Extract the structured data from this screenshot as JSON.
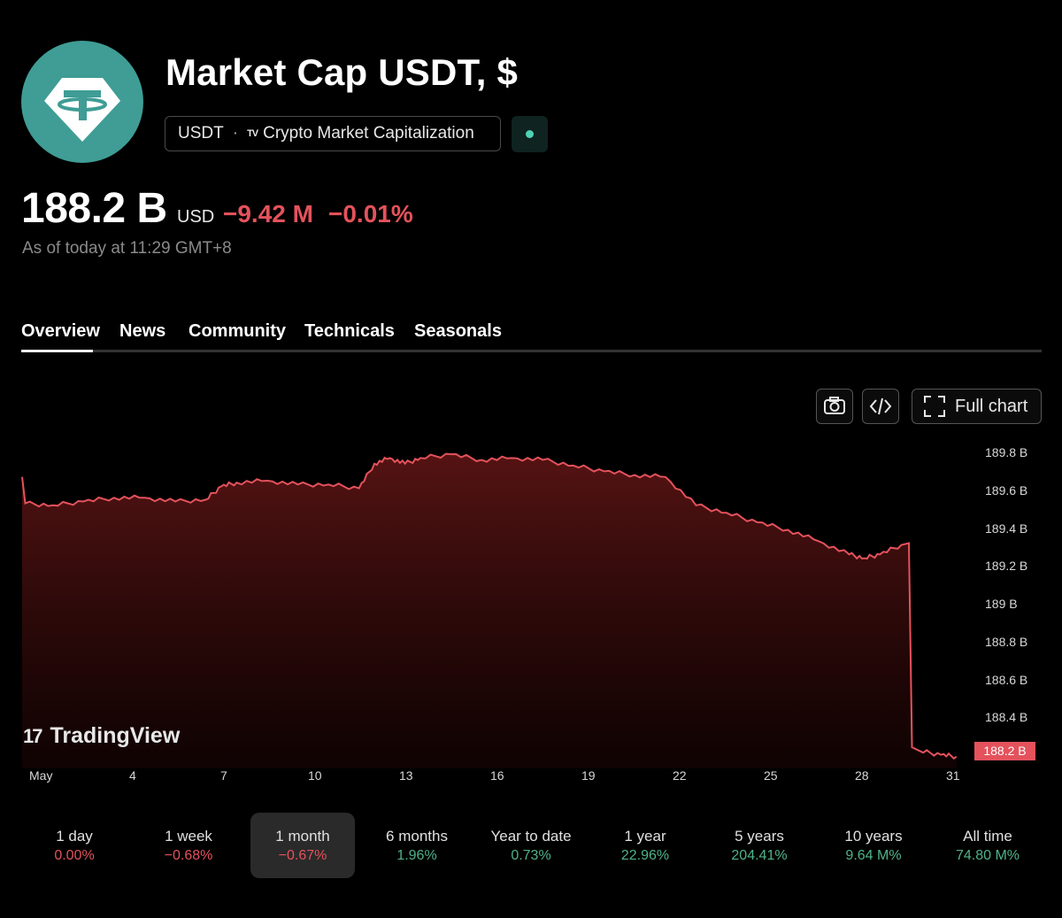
{
  "header": {
    "title": "Market Cap USDT, $",
    "symbol": "USDT",
    "source_logo": "TV",
    "source": "Crypto Market Capitalization"
  },
  "quote": {
    "value": "188.2 B",
    "currency": "USD",
    "change": "−9.42 M",
    "change_pct": "−0.01%",
    "as_of": "As of today at 11:29 GMT+8"
  },
  "tabs": [
    "Overview",
    "News",
    "Community",
    "Technicals",
    "Seasonals"
  ],
  "toolbar": {
    "full_chart": "Full chart"
  },
  "watermark": {
    "logo": "17",
    "text": "TradingView"
  },
  "colors": {
    "negative": "#e4525c",
    "positive": "#4fb38a",
    "accent": "#3f9d95"
  },
  "chart_data": {
    "type": "area",
    "y_ticks": [
      "189.8 B",
      "189.6 B",
      "189.4 B",
      "189.2 B",
      "189 B",
      "188.8 B",
      "188.6 B",
      "188.4 B",
      "188.2 B"
    ],
    "x_ticks": [
      "May",
      "4",
      "7",
      "10",
      "13",
      "16",
      "19",
      "22",
      "25",
      "28",
      "31"
    ],
    "x_day_range": [
      1,
      32
    ],
    "ylim_billion": [
      188.12,
      189.84
    ],
    "last_value_label": "188.2 B",
    "series": [
      {
        "x_day": [
          1.0,
          1.1,
          2.0,
          3.0,
          4.0,
          5.0,
          6.0,
          7.0,
          7.5,
          8.0,
          9.0,
          10.0,
          11.0,
          12.0,
          12.5,
          13.0,
          13.5,
          14.0,
          15.0,
          16.0,
          17.0,
          18.0,
          19.0,
          20.0,
          21.0,
          22.0,
          23.0,
          24.0,
          25.0,
          26.0,
          27.0,
          28.0,
          28.5,
          29.0,
          29.7,
          29.95,
          30.05,
          30.3,
          31.0,
          31.5
        ],
        "y_billion": [
          189.67,
          189.53,
          189.52,
          189.54,
          189.56,
          189.56,
          189.54,
          189.55,
          189.62,
          189.64,
          189.65,
          189.63,
          189.63,
          189.61,
          189.74,
          189.77,
          189.74,
          189.77,
          189.79,
          189.76,
          189.77,
          189.76,
          189.73,
          189.7,
          189.68,
          189.67,
          189.52,
          189.48,
          189.43,
          189.39,
          189.33,
          189.26,
          189.24,
          189.26,
          189.31,
          189.32,
          188.24,
          188.22,
          188.2,
          188.19
        ]
      }
    ]
  },
  "periods": [
    {
      "label": "1 day",
      "value": "0.00%",
      "trend": "negative"
    },
    {
      "label": "1 week",
      "value": "−0.68%",
      "trend": "negative"
    },
    {
      "label": "1 month",
      "value": "−0.67%",
      "trend": "negative",
      "selected": true
    },
    {
      "label": "6 months",
      "value": "1.96%",
      "trend": "positive"
    },
    {
      "label": "Year to date",
      "value": "0.73%",
      "trend": "positive"
    },
    {
      "label": "1 year",
      "value": "22.96%",
      "trend": "positive"
    },
    {
      "label": "5 years",
      "value": "204.41%",
      "trend": "positive"
    },
    {
      "label": "10 years",
      "value": "9.64 M%",
      "trend": "positive"
    },
    {
      "label": "All time",
      "value": "74.80 M%",
      "trend": "positive"
    }
  ]
}
